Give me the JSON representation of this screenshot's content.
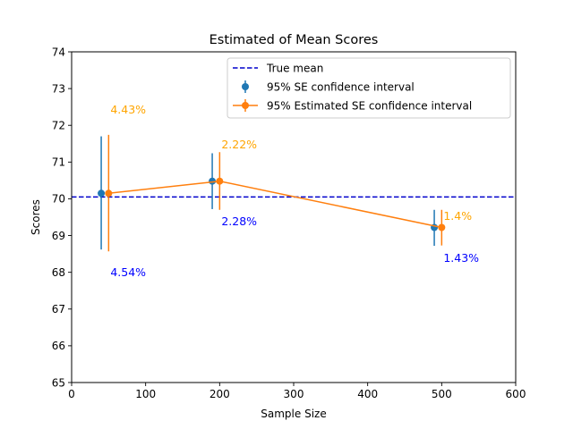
{
  "chart_data": {
    "type": "scatter",
    "title": "Estimated of Mean Scores",
    "xlabel": "Sample Size",
    "ylabel": "Scores",
    "xlim": [
      0,
      600
    ],
    "ylim": [
      65,
      74
    ],
    "xticks": [
      "0",
      "100",
      "200",
      "300",
      "400",
      "500",
      "600"
    ],
    "yticks": [
      "65",
      "66",
      "67",
      "68",
      "69",
      "70",
      "71",
      "72",
      "73",
      "74"
    ],
    "grid": false,
    "legend_position": "top-right",
    "true_mean": {
      "name": "True mean",
      "value": 70.05,
      "color": "#0000cc"
    },
    "series": [
      {
        "name": "95% SE confidence interval",
        "color": "#1f77b4",
        "connected": false,
        "x": [
          40,
          190,
          490
        ],
        "y": [
          70.15,
          70.48,
          69.22
        ],
        "err_low": [
          68.62,
          69.72,
          68.72
        ],
        "err_high": [
          71.7,
          71.24,
          69.7
        ],
        "labels": [
          "4.54%",
          "2.28%",
          "1.43%"
        ],
        "label_color": "#0000ff"
      },
      {
        "name": "95% Estimated SE confidence interval",
        "color": "#ff7f0e",
        "connected": true,
        "x": [
          50,
          200,
          500
        ],
        "y": [
          70.15,
          70.48,
          69.22
        ],
        "err_low": [
          68.57,
          69.7,
          68.73
        ],
        "err_high": [
          71.74,
          71.27,
          69.7
        ],
        "labels": [
          "4.43%",
          "2.22%",
          "1.4%"
        ],
        "label_color": "#ffa500"
      }
    ]
  }
}
